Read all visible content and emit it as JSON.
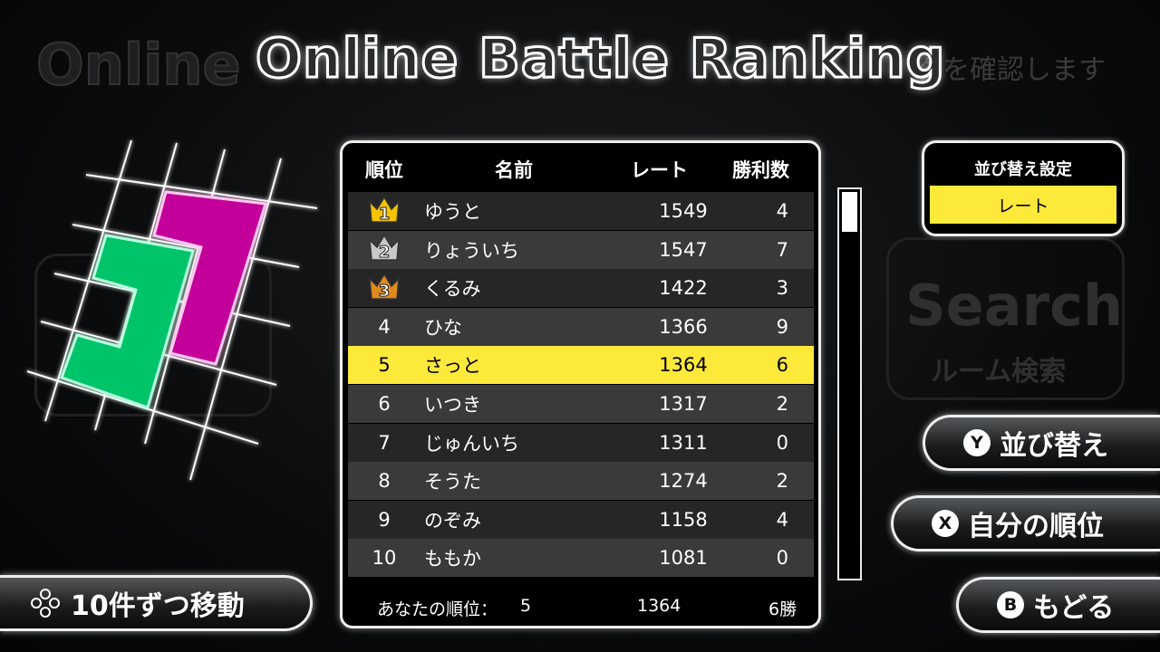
{
  "background": {
    "ghost_title": "Online",
    "ghost_subtitle": "グを確認します",
    "ghost_search_title": "Search",
    "ghost_search_sub": "ルーム検索"
  },
  "title": "Online Battle Ranking",
  "table": {
    "headers": {
      "rank": "順位",
      "name": "名前",
      "rate": "レート",
      "wins": "勝利数"
    },
    "rows": [
      {
        "rank": "1",
        "name": "ゆうと",
        "rate": "1549",
        "wins": "4",
        "crown": "gold"
      },
      {
        "rank": "2",
        "name": "りょういち",
        "rate": "1547",
        "wins": "7",
        "crown": "silver"
      },
      {
        "rank": "3",
        "name": "くるみ",
        "rate": "1422",
        "wins": "3",
        "crown": "bronze"
      },
      {
        "rank": "4",
        "name": "ひな",
        "rate": "1366",
        "wins": "9"
      },
      {
        "rank": "5",
        "name": "さっと",
        "rate": "1364",
        "wins": "6",
        "highlight": true
      },
      {
        "rank": "6",
        "name": "いつき",
        "rate": "1317",
        "wins": "2"
      },
      {
        "rank": "7",
        "name": "じゅんいち",
        "rate": "1311",
        "wins": "0"
      },
      {
        "rank": "8",
        "name": "そうた",
        "rate": "1274",
        "wins": "2"
      },
      {
        "rank": "9",
        "name": "のぞみ",
        "rate": "1158",
        "wins": "4"
      },
      {
        "rank": "10",
        "name": "ももか",
        "rate": "1081",
        "wins": "0"
      }
    ],
    "footer": {
      "label": "あなたの順位：",
      "rank": "5",
      "rate": "1364",
      "wins": "6勝"
    }
  },
  "scrollbar": {
    "position_percent": 0
  },
  "sort": {
    "title": "並び替え設定",
    "value": "レート"
  },
  "buttons": {
    "sort": {
      "key": "Y",
      "label": "並び替え"
    },
    "my_rank": {
      "key": "X",
      "label": "自分の順位"
    },
    "back": {
      "key": "B",
      "label": "もどる"
    },
    "page": {
      "label": "10件ずつ移動"
    }
  },
  "colors": {
    "highlight": "#fde93a",
    "green_piece": "#00c46a",
    "magenta_piece": "#c4009a",
    "gold": "#f5c400",
    "silver": "#c8c8c8",
    "bronze": "#e08a1e"
  }
}
